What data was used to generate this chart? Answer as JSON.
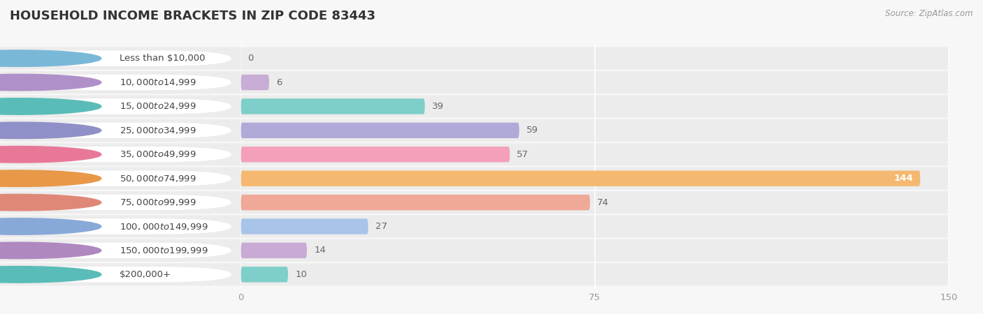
{
  "title": "HOUSEHOLD INCOME BRACKETS IN ZIP CODE 83443",
  "source": "Source: ZipAtlas.com",
  "categories": [
    "Less than $10,000",
    "$10,000 to $14,999",
    "$15,000 to $24,999",
    "$25,000 to $34,999",
    "$35,000 to $49,999",
    "$50,000 to $74,999",
    "$75,000 to $99,999",
    "$100,000 to $149,999",
    "$150,000 to $199,999",
    "$200,000+"
  ],
  "values": [
    0,
    6,
    39,
    59,
    57,
    144,
    74,
    27,
    14,
    10
  ],
  "bar_colors": [
    "#a8d4e8",
    "#c8aed6",
    "#7ececa",
    "#b0aad8",
    "#f4a0b8",
    "#f5b870",
    "#f0a898",
    "#a8c4e8",
    "#c8aad4",
    "#7ececa"
  ],
  "label_circle_colors": [
    "#7ab8d8",
    "#b090c8",
    "#5abcb8",
    "#9090c8",
    "#e87898",
    "#e89848",
    "#e08878",
    "#88a8d8",
    "#b088c0",
    "#5abcb8"
  ],
  "xlim_max": 150,
  "xticks": [
    0,
    75,
    150
  ],
  "bg_color": "#f7f7f7",
  "row_bg_color": "#ececec",
  "title_fontsize": 13,
  "label_fontsize": 9.5,
  "value_fontsize": 9.5
}
